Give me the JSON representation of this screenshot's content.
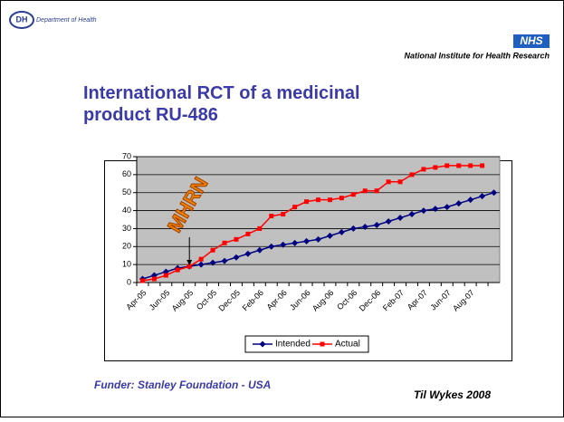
{
  "slide": {
    "dh_logo": "DH",
    "dh_name": "Department of Health",
    "nhs_logo": "NHS",
    "nihr_name": "National Institute for Health Research",
    "title": "International RCT of a medicinal product RU-486",
    "funder": "Funder: Stanley Foundation - USA",
    "author": "Til Wykes 2008"
  },
  "chart_data": {
    "type": "line",
    "categories": [
      "Apr-05",
      null,
      "Jun-05",
      null,
      "Aug-05",
      null,
      "Oct-05",
      null,
      "Dec-05",
      null,
      "Feb-06",
      null,
      "Apr-06",
      null,
      "Jun-06",
      null,
      "Aug-06",
      null,
      "Oct-06",
      null,
      "Dec-06",
      null,
      "Feb-07",
      null,
      "Apr-07",
      null,
      "Jun-07",
      null,
      "Aug-07",
      null,
      null
    ],
    "series": [
      {
        "name": "Intended",
        "color": "#000080",
        "marker": "diamond",
        "values": [
          2,
          4,
          6,
          8,
          9,
          10,
          11,
          12,
          14,
          16,
          18,
          20,
          21,
          22,
          23,
          24,
          26,
          28,
          30,
          31,
          32,
          34,
          36,
          38,
          40,
          41,
          42,
          44,
          46,
          48,
          50
        ]
      },
      {
        "name": "Actual",
        "color": "#ff0000",
        "marker": "square",
        "values": [
          1,
          2,
          4,
          7,
          9,
          13,
          18,
          22,
          24,
          27,
          30,
          37,
          38,
          42,
          45,
          46,
          46,
          47,
          49,
          51,
          51,
          56,
          56,
          60,
          63,
          64,
          65,
          65,
          65,
          65,
          null
        ]
      }
    ],
    "ylim": [
      0,
      70
    ],
    "yticks": [
      0,
      10,
      20,
      30,
      40,
      50,
      60,
      70
    ],
    "grid": true,
    "annotations": [
      {
        "text": "MHRN",
        "category_index": 4
      }
    ],
    "legend": "bottom"
  }
}
